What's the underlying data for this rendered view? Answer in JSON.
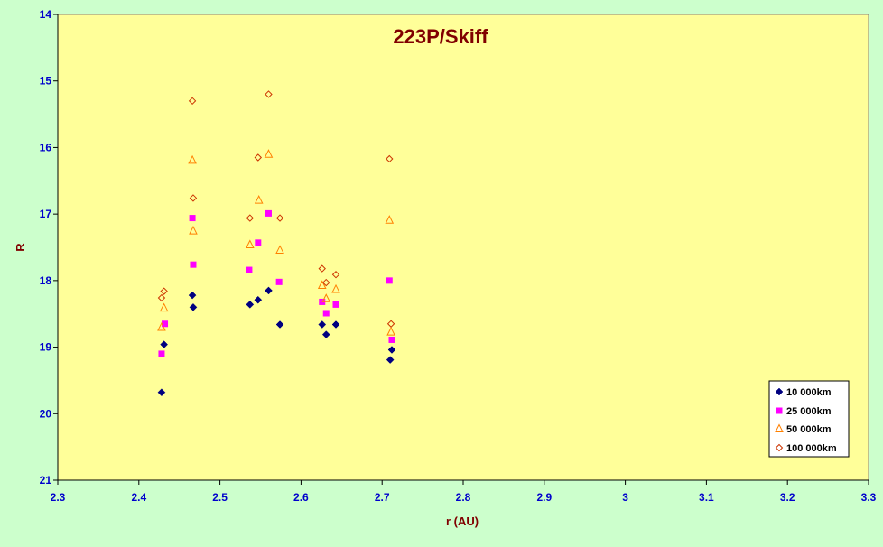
{
  "chart_data": {
    "type": "scatter",
    "title": "223P/Skiff",
    "xlabel": "r (AU)",
    "ylabel": "R",
    "xlim": [
      2.3,
      3.3
    ],
    "ylim": [
      14,
      21
    ],
    "y_reversed": true,
    "x_ticks": [
      "2.3",
      "2.4",
      "2.5",
      "2.6",
      "2.7",
      "2.8",
      "2.9",
      "3",
      "3.1",
      "3.2",
      "3.3"
    ],
    "y_ticks": [
      "14",
      "15",
      "16",
      "17",
      "18",
      "19",
      "20",
      "21"
    ],
    "grid": false,
    "legend_position": "bottom-right",
    "colors": {
      "background": "#ccffcc",
      "plot_area": "#ffff99",
      "title": "#800000",
      "axis_label": "#800000",
      "tick_label": "#0000cc"
    },
    "series": [
      {
        "name": "10 000km",
        "marker": "diamond",
        "color": "#000080",
        "points": [
          [
            2.428,
            19.68
          ],
          [
            2.431,
            18.96
          ],
          [
            2.466,
            18.22
          ],
          [
            2.467,
            18.4
          ],
          [
            2.537,
            18.36
          ],
          [
            2.547,
            18.29
          ],
          [
            2.56,
            18.15
          ],
          [
            2.574,
            18.66
          ],
          [
            2.626,
            18.66
          ],
          [
            2.631,
            18.81
          ],
          [
            2.643,
            18.66
          ],
          [
            2.71,
            19.19
          ],
          [
            2.712,
            19.04
          ]
        ]
      },
      {
        "name": "25 000km",
        "marker": "square",
        "color": "#ff00ff",
        "points": [
          [
            2.428,
            19.1
          ],
          [
            2.432,
            18.65
          ],
          [
            2.466,
            17.06
          ],
          [
            2.467,
            17.76
          ],
          [
            2.536,
            17.84
          ],
          [
            2.547,
            17.43
          ],
          [
            2.56,
            16.99
          ],
          [
            2.573,
            18.02
          ],
          [
            2.626,
            18.32
          ],
          [
            2.631,
            18.49
          ],
          [
            2.643,
            18.36
          ],
          [
            2.709,
            18.0
          ],
          [
            2.712,
            18.89
          ]
        ]
      },
      {
        "name": "50 000km",
        "marker": "triangle",
        "color": "#ff8000",
        "points": [
          [
            2.428,
            18.7
          ],
          [
            2.431,
            18.41
          ],
          [
            2.466,
            16.19
          ],
          [
            2.467,
            17.25
          ],
          [
            2.537,
            17.46
          ],
          [
            2.548,
            16.79
          ],
          [
            2.56,
            16.1
          ],
          [
            2.574,
            17.54
          ],
          [
            2.626,
            18.07
          ],
          [
            2.631,
            18.27
          ],
          [
            2.643,
            18.13
          ],
          [
            2.709,
            17.09
          ],
          [
            2.711,
            18.77
          ]
        ]
      },
      {
        "name": "100 000km",
        "marker": "circle",
        "color": "#cc3300",
        "points": [
          [
            2.428,
            18.26
          ],
          [
            2.431,
            18.16
          ],
          [
            2.466,
            15.3
          ],
          [
            2.467,
            16.76
          ],
          [
            2.537,
            17.06
          ],
          [
            2.547,
            16.15
          ],
          [
            2.56,
            15.2
          ],
          [
            2.574,
            17.06
          ],
          [
            2.626,
            17.82
          ],
          [
            2.631,
            18.03
          ],
          [
            2.643,
            17.91
          ],
          [
            2.709,
            16.17
          ],
          [
            2.711,
            18.65
          ]
        ]
      }
    ]
  }
}
